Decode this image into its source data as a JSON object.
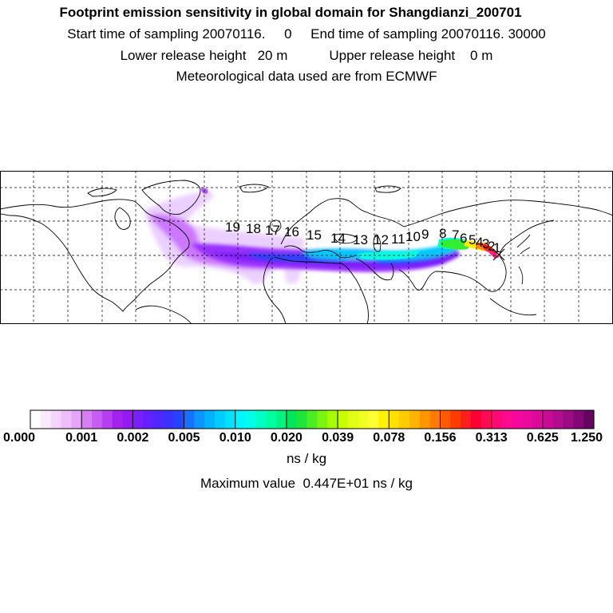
{
  "header": {
    "title": "Footprint emission sensitivity in global domain for Shangdianzi_200701",
    "line1": "Start time of sampling 20070116.     0     End time of sampling 20070116. 30000",
    "line2": "Lower release height   20 m           Upper release height    0 m",
    "line3": "Meteorological data used are from ECMWF"
  },
  "map": {
    "day_labels": [
      "19",
      "18",
      "17",
      "16",
      "15",
      "14",
      "13",
      "12",
      "11",
      "10",
      "9",
      "8",
      "7",
      "6",
      "5",
      "4",
      "3",
      "2",
      "1"
    ],
    "plume_colors": {
      "faint": "#e8c8ff",
      "light": "#cc77ff",
      "mid": "#9933ff",
      "violet": "#7a1fff",
      "blue": "#2f3fff",
      "cyan": "#00c8ff",
      "aqua": "#00ffe0",
      "green": "#33ee33",
      "yellow": "#ffee00",
      "orange": "#ff8800",
      "red": "#ff1111",
      "pink": "#ff1f8f"
    }
  },
  "colorbar": {
    "tick_labels": [
      "0.000",
      "0.001",
      "0.002",
      "0.005",
      "0.010",
      "0.020",
      "0.039",
      "0.078",
      "0.156",
      "0.313",
      "0.625",
      "1.250"
    ],
    "segment_colors": [
      "#ffffff",
      "#fbeafe",
      "#f5d5fd",
      "#eec0fb",
      "#e6a6f8",
      "#d77ef5",
      "#c75ef3",
      "#b83ef2",
      "#a422ef",
      "#951af2",
      "#7a1fff",
      "#6420ff",
      "#4f28ff",
      "#3a33ff",
      "#2444ff",
      "#1572ff",
      "#0a95ff",
      "#00b2ff",
      "#00ccff",
      "#00e2ff",
      "#00f6ff",
      "#00ffe6",
      "#00ffc4",
      "#00ffa0",
      "#00f580",
      "#00e65a",
      "#1ee63a",
      "#4cee22",
      "#7af50f",
      "#a6ff00",
      "#c8ff00",
      "#e0ff14",
      "#f0ff22",
      "#ffff33",
      "#fff200",
      "#ffe000",
      "#ffcc00",
      "#ffb400",
      "#ff9600",
      "#ff7a00",
      "#ff5a00",
      "#ff3c00",
      "#ff1e1e",
      "#ff0033",
      "#ff0a55",
      "#ff0a75",
      "#ff0a90",
      "#f7089c",
      "#ea0a9e",
      "#dc0a9b",
      "#c80c95",
      "#b40c8f",
      "#9c0a84",
      "#820876",
      "#640660"
    ],
    "unit": "ns / kg",
    "max_value_text": "Maximum value  0.447E+01 ns / kg"
  }
}
